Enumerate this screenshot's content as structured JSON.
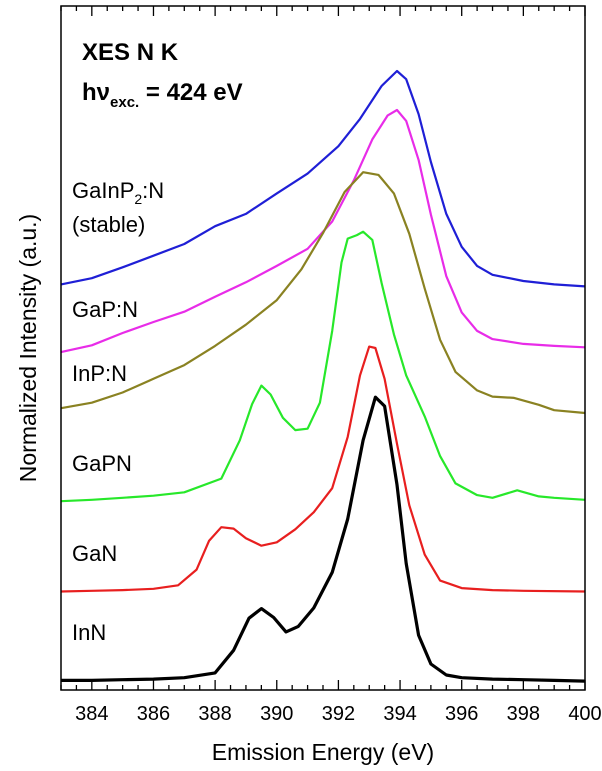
{
  "chart_data": {
    "type": "line",
    "title": "",
    "xlabel": "Emission Energy (eV)",
    "ylabel": "Normalized Intensity (a.u.)",
    "xlim": [
      383,
      400
    ],
    "ylim": [
      0,
      100
    ],
    "x_ticks": [
      "384",
      "386",
      "388",
      "390",
      "392",
      "394",
      "396",
      "398",
      "400"
    ],
    "grid": false,
    "annotation": {
      "line1": "XES N K",
      "line2_main": "hν",
      "line2_sub": "exc.",
      "line2_value": " = 424 eV"
    },
    "series": [
      {
        "label_line1_main": "GaInP",
        "label_line1_sub": "2",
        "label_line1_suffix": ":N",
        "label_line2": "(stable)",
        "color": "#1f1fd6",
        "points": [
          [
            383,
            59.3
          ],
          [
            384,
            60.2
          ],
          [
            385,
            61.8
          ],
          [
            386,
            63.5
          ],
          [
            387,
            65.2
          ],
          [
            388,
            67.8
          ],
          [
            389,
            69.6
          ],
          [
            390,
            72.6
          ],
          [
            391,
            75.5
          ],
          [
            392,
            79.5
          ],
          [
            392.7,
            83.5
          ],
          [
            393.4,
            88.3
          ],
          [
            393.9,
            90.5
          ],
          [
            394.2,
            89.3
          ],
          [
            394.6,
            84.2
          ],
          [
            395,
            77.2
          ],
          [
            395.5,
            69.6
          ],
          [
            396,
            64.8
          ],
          [
            396.5,
            62.0
          ],
          [
            397,
            60.7
          ],
          [
            398,
            59.8
          ],
          [
            399,
            59.3
          ],
          [
            400,
            59.0
          ]
        ]
      },
      {
        "label": "GaP:N",
        "color": "#e82ce8",
        "points": [
          [
            383,
            49.4
          ],
          [
            384,
            50.4
          ],
          [
            385,
            52.2
          ],
          [
            386,
            53.8
          ],
          [
            387,
            55.3
          ],
          [
            388,
            57.5
          ],
          [
            389,
            59.6
          ],
          [
            390,
            62.0
          ],
          [
            391,
            64.5
          ],
          [
            391.8,
            68.5
          ],
          [
            392.5,
            74.5
          ],
          [
            393.1,
            80.5
          ],
          [
            393.6,
            84.0
          ],
          [
            393.9,
            84.8
          ],
          [
            394.2,
            83.2
          ],
          [
            394.6,
            77.5
          ],
          [
            395,
            69.5
          ],
          [
            395.5,
            60.5
          ],
          [
            396,
            55.2
          ],
          [
            396.5,
            52.5
          ],
          [
            397,
            51.3
          ],
          [
            398,
            50.6
          ],
          [
            399,
            50.3
          ],
          [
            400,
            50.1
          ]
        ]
      },
      {
        "label": "InP:N",
        "color": "#8a8222",
        "points": [
          [
            383,
            41.2
          ],
          [
            384,
            42.0
          ],
          [
            385,
            43.5
          ],
          [
            386,
            45.5
          ],
          [
            387,
            47.5
          ],
          [
            388,
            50.3
          ],
          [
            389,
            53.4
          ],
          [
            390,
            57.0
          ],
          [
            390.8,
            61.5
          ],
          [
            391.5,
            66.8
          ],
          [
            392.2,
            72.8
          ],
          [
            392.8,
            75.7
          ],
          [
            393.3,
            75.3
          ],
          [
            393.8,
            72.6
          ],
          [
            394.3,
            66.7
          ],
          [
            394.8,
            58.7
          ],
          [
            395.3,
            51.2
          ],
          [
            395.8,
            46.5
          ],
          [
            396.5,
            43.8
          ],
          [
            397,
            42.9
          ],
          [
            397.7,
            42.7
          ],
          [
            398.5,
            41.7
          ],
          [
            399,
            40.9
          ],
          [
            400,
            40.5
          ]
        ]
      },
      {
        "label": "GaPN",
        "color": "#27e82a",
        "points": [
          [
            383,
            27.6
          ],
          [
            384,
            27.8
          ],
          [
            385,
            28.1
          ],
          [
            386,
            28.4
          ],
          [
            387,
            28.9
          ],
          [
            388.2,
            30.9
          ],
          [
            388.8,
            36.5
          ],
          [
            389.2,
            41.8
          ],
          [
            389.5,
            44.5
          ],
          [
            389.8,
            43.2
          ],
          [
            390.2,
            39.8
          ],
          [
            390.6,
            38.0
          ],
          [
            391,
            38.2
          ],
          [
            391.4,
            42.0
          ],
          [
            391.8,
            52.5
          ],
          [
            392.1,
            62.5
          ],
          [
            392.3,
            66.0
          ],
          [
            392.6,
            66.5
          ],
          [
            392.8,
            67.0
          ],
          [
            393.1,
            65.8
          ],
          [
            393.4,
            59.5
          ],
          [
            393.8,
            52.0
          ],
          [
            394.2,
            46.0
          ],
          [
            394.8,
            40.0
          ],
          [
            395.3,
            34.2
          ],
          [
            395.8,
            30.2
          ],
          [
            396.5,
            28.5
          ],
          [
            397,
            28.1
          ],
          [
            397.8,
            29.2
          ],
          [
            398.5,
            28.3
          ],
          [
            399,
            28.1
          ],
          [
            400,
            27.8
          ]
        ]
      },
      {
        "label": "GaN",
        "color": "#e81f1f",
        "points": [
          [
            383,
            14.4
          ],
          [
            384,
            14.5
          ],
          [
            385,
            14.6
          ],
          [
            386,
            14.8
          ],
          [
            386.8,
            15.3
          ],
          [
            387.4,
            17.6
          ],
          [
            387.8,
            21.8
          ],
          [
            388.2,
            23.8
          ],
          [
            388.6,
            23.6
          ],
          [
            389,
            22.2
          ],
          [
            389.5,
            21.1
          ],
          [
            390,
            21.6
          ],
          [
            390.6,
            23.5
          ],
          [
            391.2,
            26.0
          ],
          [
            391.8,
            29.5
          ],
          [
            392.3,
            37.0
          ],
          [
            392.7,
            46.0
          ],
          [
            393,
            50.2
          ],
          [
            393.2,
            50.0
          ],
          [
            393.5,
            45.5
          ],
          [
            393.9,
            36.0
          ],
          [
            394.3,
            27.0
          ],
          [
            394.8,
            19.8
          ],
          [
            395.3,
            16.0
          ],
          [
            396,
            14.9
          ],
          [
            397,
            14.6
          ],
          [
            398,
            14.5
          ],
          [
            400,
            14.4
          ]
        ]
      },
      {
        "label": "InN",
        "color": "#000000",
        "points": [
          [
            383,
            1.4
          ],
          [
            384,
            1.4
          ],
          [
            385,
            1.5
          ],
          [
            386,
            1.6
          ],
          [
            387,
            1.8
          ],
          [
            388,
            2.5
          ],
          [
            388.6,
            5.8
          ],
          [
            389.1,
            10.5
          ],
          [
            389.5,
            11.9
          ],
          [
            389.9,
            10.6
          ],
          [
            390.3,
            8.5
          ],
          [
            390.7,
            9.3
          ],
          [
            391.2,
            12.0
          ],
          [
            391.8,
            17.2
          ],
          [
            392.3,
            25.0
          ],
          [
            392.8,
            36.5
          ],
          [
            393.2,
            42.8
          ],
          [
            393.5,
            41.5
          ],
          [
            393.9,
            30.0
          ],
          [
            394.2,
            18.5
          ],
          [
            394.6,
            8.0
          ],
          [
            395,
            3.8
          ],
          [
            395.5,
            2.2
          ],
          [
            396,
            1.8
          ],
          [
            397,
            1.6
          ],
          [
            398,
            1.5
          ],
          [
            399,
            1.4
          ],
          [
            400,
            1.3
          ]
        ]
      }
    ]
  }
}
